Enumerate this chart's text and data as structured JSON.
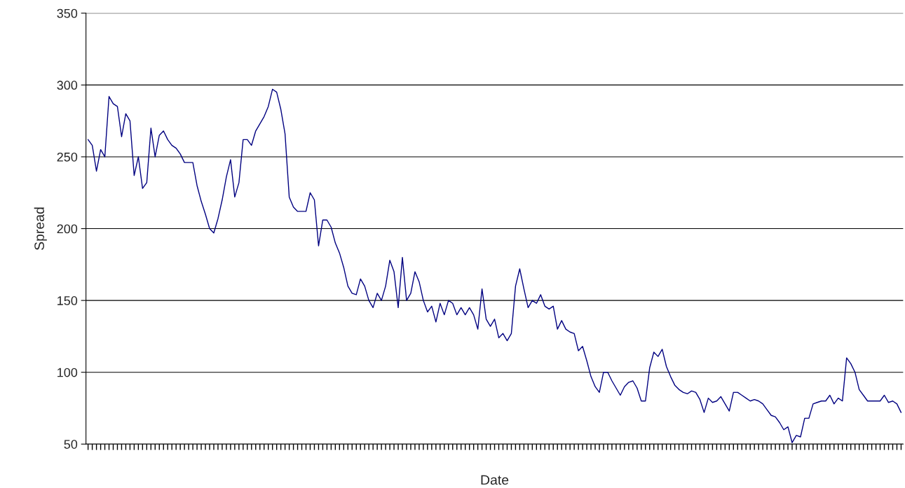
{
  "chart_data": {
    "type": "line",
    "xlabel": "Date",
    "ylabel": "Spread",
    "categories": [
      null,
      null,
      null,
      null,
      null,
      null,
      null,
      null,
      null,
      null,
      null,
      null,
      null,
      null,
      null,
      null,
      null,
      null,
      null,
      null,
      null,
      null,
      null,
      null,
      null,
      null,
      null,
      null,
      null,
      null,
      null,
      null,
      null,
      null,
      null,
      null,
      null,
      null,
      null,
      null,
      null,
      null,
      null,
      null,
      null,
      null,
      null,
      null,
      null,
      null,
      null,
      null,
      null,
      null,
      null,
      null,
      null,
      null,
      null,
      null,
      null,
      null,
      null,
      null,
      null,
      null,
      null,
      null,
      null,
      null,
      null,
      null,
      null,
      null,
      null,
      null,
      null,
      null,
      null,
      null,
      null,
      null,
      null,
      null,
      null,
      null,
      null,
      null,
      null,
      null,
      null,
      null,
      null,
      null,
      null,
      null,
      null,
      null,
      null,
      null,
      null,
      null,
      null,
      null,
      null,
      null,
      null,
      null,
      null,
      null,
      null,
      null,
      null,
      null,
      null,
      null,
      null,
      null,
      null,
      null,
      null,
      null,
      null,
      null,
      null,
      null,
      null,
      null,
      null,
      null,
      null,
      null,
      null,
      null,
      null,
      null,
      null,
      null,
      null,
      null,
      null,
      null,
      null,
      null,
      null,
      null,
      null,
      null,
      null,
      null,
      null,
      null,
      null,
      null,
      null,
      null,
      null,
      null,
      null,
      null,
      null,
      null,
      null,
      null,
      null,
      null,
      null,
      null,
      null,
      null,
      null,
      null,
      null,
      null,
      null,
      null,
      null,
      null,
      null,
      null,
      null,
      null,
      null,
      null,
      null,
      null,
      null,
      null,
      null,
      null,
      null,
      null,
      null,
      null,
      null
    ],
    "series": [
      {
        "color": "#000080",
        "values": [
          262,
          258,
          240,
          255,
          250,
          292,
          287,
          285,
          264,
          280,
          275,
          237,
          250,
          228,
          232,
          270,
          250,
          265,
          268,
          262,
          258,
          256,
          252,
          246,
          246,
          246,
          230,
          219,
          210,
          200,
          197,
          207,
          220,
          236,
          248,
          222,
          232,
          262,
          262,
          258,
          268,
          273,
          278,
          285,
          297,
          295,
          283,
          266,
          222,
          215,
          212,
          212,
          212,
          225,
          220,
          188,
          206,
          206,
          201,
          190,
          183,
          173,
          160,
          155,
          154,
          165,
          160,
          150,
          145,
          155,
          150,
          160,
          178,
          170,
          145,
          180,
          150,
          155,
          170,
          163,
          150,
          142,
          146,
          135,
          148,
          140,
          150,
          148,
          140,
          145,
          140,
          145,
          140,
          130,
          158,
          137,
          132,
          137,
          124,
          127,
          122,
          127,
          160,
          172,
          158,
          145,
          150,
          148,
          154,
          146,
          144,
          146,
          130,
          136,
          130,
          128,
          127,
          115,
          118,
          108,
          97,
          90,
          86,
          100,
          100,
          94,
          89,
          84,
          90,
          93,
          94,
          89,
          80,
          80,
          103,
          114,
          111,
          116,
          104,
          97,
          91,
          88,
          86,
          85,
          87,
          86,
          81,
          72,
          82,
          79,
          80,
          83,
          78,
          73,
          86,
          86,
          84,
          82,
          80,
          81,
          80,
          78,
          74,
          70,
          69,
          65,
          60,
          62,
          51,
          56,
          55,
          68,
          68,
          78,
          79,
          80,
          80,
          84,
          78,
          82,
          80,
          110,
          106,
          100,
          88,
          84,
          80,
          80,
          80,
          80,
          84,
          79,
          80,
          78,
          72
        ]
      }
    ],
    "ylim": [
      50,
      350
    ],
    "yticks": [
      50,
      100,
      150,
      200,
      250,
      300,
      350
    ],
    "grid": "y",
    "tick_labels": "y",
    "marker": "none",
    "line_style": "solid"
  }
}
